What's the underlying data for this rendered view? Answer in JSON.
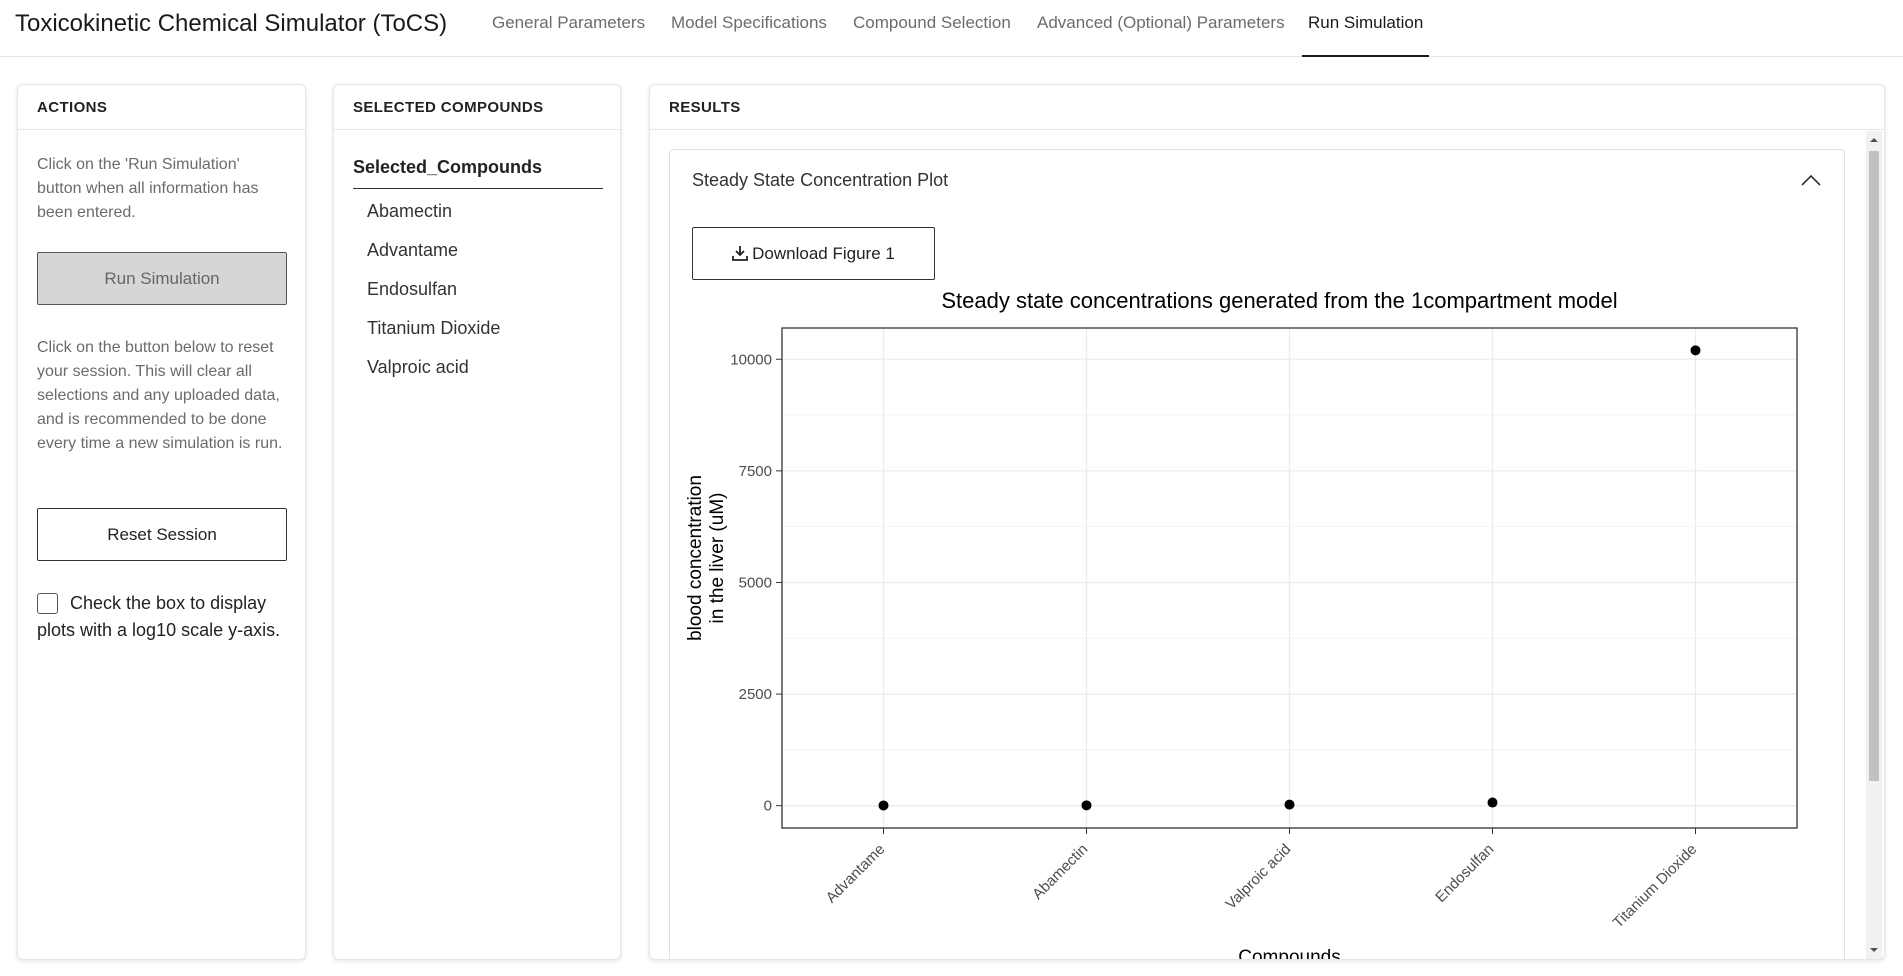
{
  "app": {
    "title": "Toxicokinetic Chemical Simulator (ToCS)"
  },
  "nav": {
    "tabs": [
      {
        "label": "General Parameters"
      },
      {
        "label": "Model Specifications"
      },
      {
        "label": "Compound Selection"
      },
      {
        "label": "Advanced (Optional) Parameters"
      },
      {
        "label": "Run Simulation"
      }
    ],
    "active": "Run Simulation"
  },
  "actions": {
    "header": "ACTIONS",
    "run_help": "Click on the 'Run Simulation' button when all information has been entered.",
    "run_label": "Run Simulation",
    "reset_help": "Click on the button below to reset your session. This will clear all selections and any uploaded data, and is recommended to be done every time a new simulation is run.",
    "reset_label": "Reset Session",
    "log_checkbox_label": "Check the box to display plots with a log10 scale y-axis.",
    "log_checked": false
  },
  "compounds": {
    "header": "SELECTED COMPOUNDS",
    "column_header": "Selected_Compounds",
    "items": [
      "Abamectin",
      "Advantame",
      "Endosulfan",
      "Titanium Dioxide",
      "Valproic acid"
    ]
  },
  "results": {
    "header": "RESULTS",
    "panel_title": "Steady State Concentration Plot",
    "download_label": "Download Figure 1"
  },
  "chart_data": {
    "type": "scatter",
    "title": "Steady state concentrations generated from the 1compartment model",
    "xlabel": "Compounds",
    "ylabel": [
      "blood concentration",
      "in the liver (uM)"
    ],
    "categories": [
      "Advantame",
      "Abamectin",
      "Valproic acid",
      "Endosulfan",
      "Titanium Dioxide"
    ],
    "values": [
      5,
      8,
      25,
      70,
      10200
    ],
    "yticks": [
      0,
      2500,
      5000,
      7500,
      10000
    ],
    "ylim": [
      -500,
      10700
    ],
    "grid": true,
    "colors": {
      "point": "#000000",
      "grid": "#ebebeb",
      "axis": "#333333"
    }
  }
}
